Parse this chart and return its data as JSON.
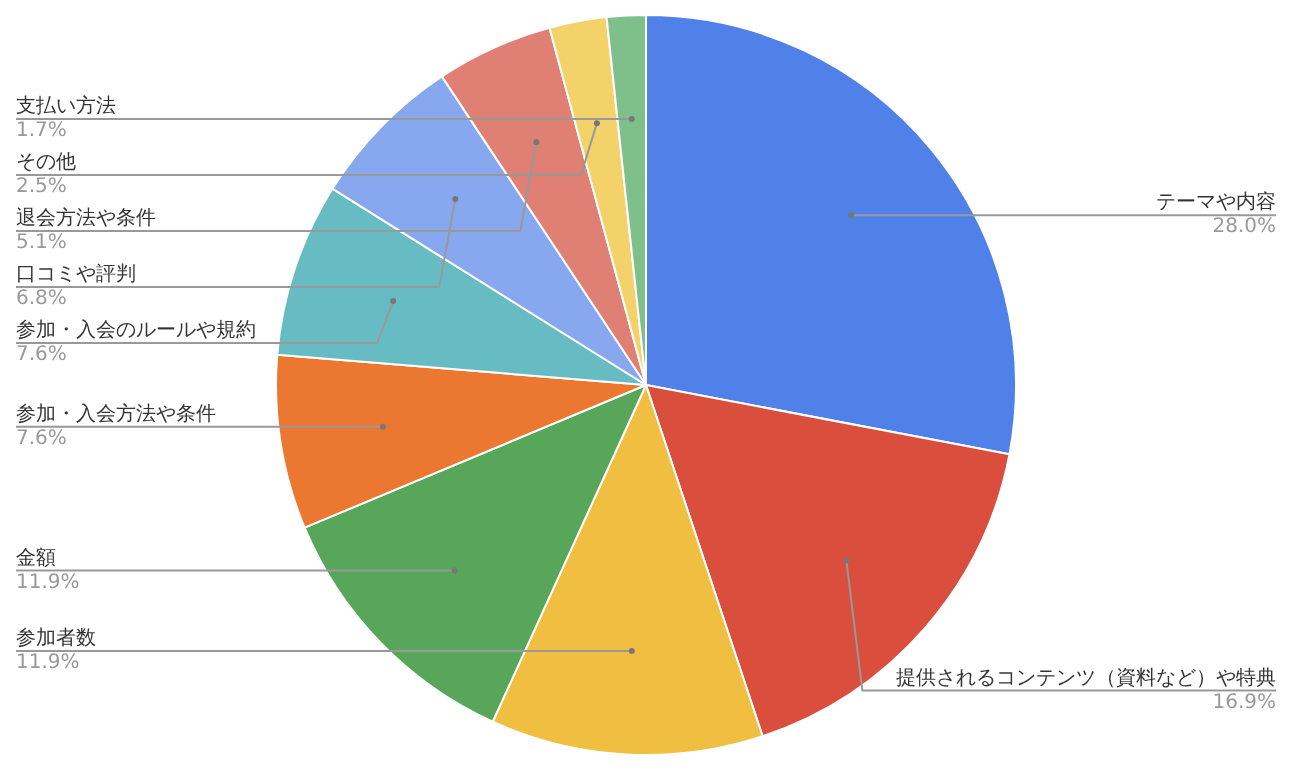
{
  "chart_data": {
    "type": "pie",
    "categories": [
      "テーマや内容",
      "提供されるコンテンツ（資料など）や特典",
      "参加者数",
      "金額",
      "参加・入会方法や条件",
      "参加・入会のルールや規約",
      "口コミや評判",
      "退会方法や条件",
      "その他",
      "支払い方法"
    ],
    "values": [
      28.0,
      16.9,
      11.9,
      11.9,
      7.6,
      7.6,
      6.8,
      5.1,
      2.5,
      1.7
    ],
    "colors": [
      "#4f81e9",
      "#d94e3c",
      "#f0bf41",
      "#57a65a",
      "#eb7730",
      "#67bcc3",
      "#87a8ee",
      "#e07f73",
      "#f4d26a",
      "#7fc08a"
    ],
    "value_labels": [
      "28.0%",
      "16.9%",
      "11.9%",
      "11.9%",
      "7.6%",
      "7.6%",
      "6.8%",
      "5.1%",
      "2.5%",
      "1.7%"
    ]
  }
}
